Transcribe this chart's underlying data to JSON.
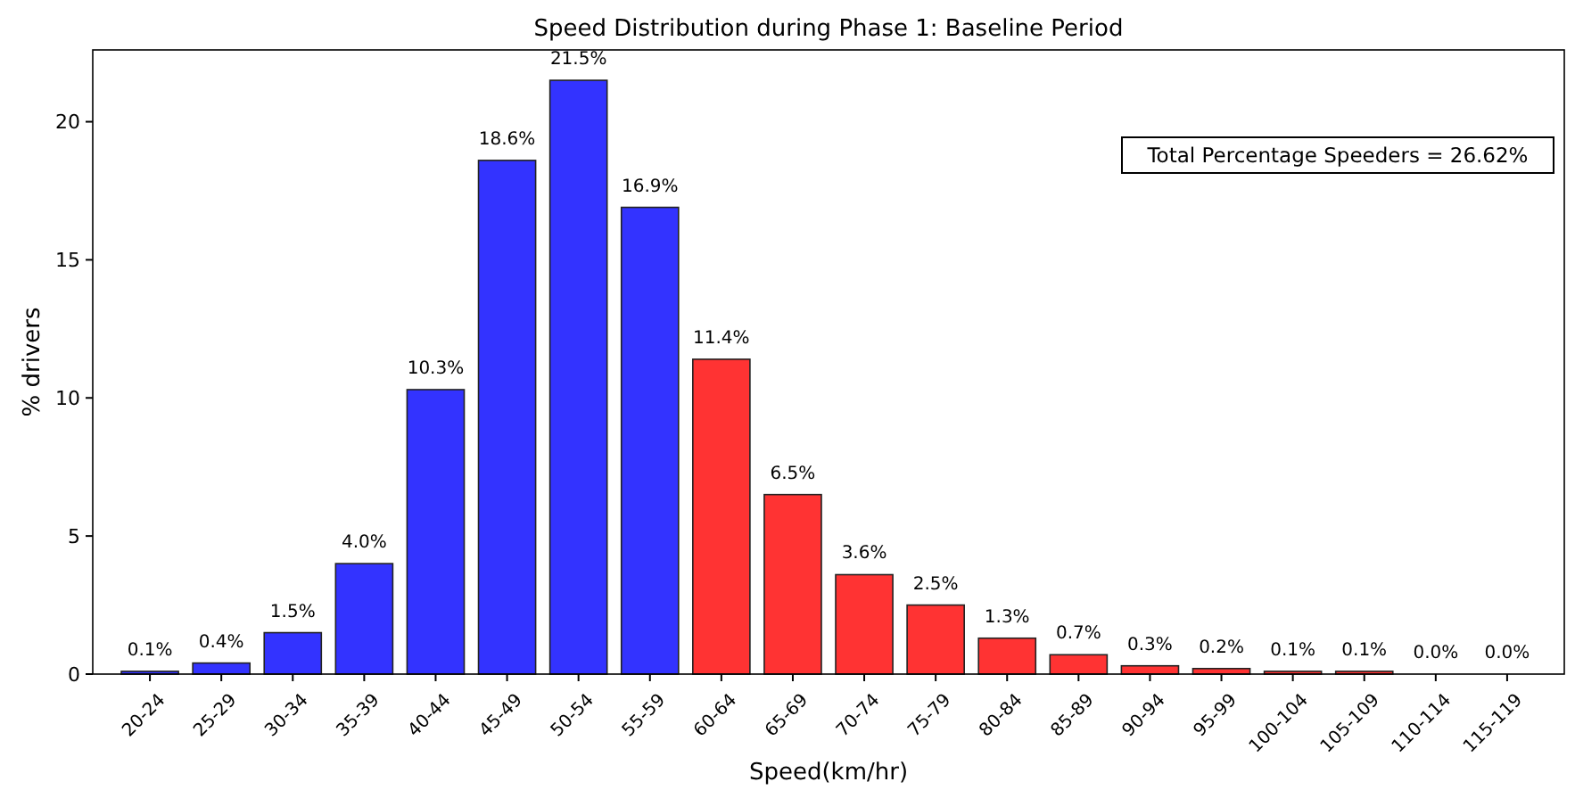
{
  "chart_data": {
    "type": "bar",
    "title": "Speed Distribution during Phase 1: Baseline Period",
    "xlabel": "Speed(km/hr)",
    "ylabel": "% drivers",
    "categories": [
      "20-24",
      "25-29",
      "30-34",
      "35-39",
      "40-44",
      "45-49",
      "50-54",
      "55-59",
      "60-64",
      "65-69",
      "70-74",
      "75-79",
      "80-84",
      "85-89",
      "90-94",
      "95-99",
      "100-104",
      "105-109",
      "110-114",
      "115-119"
    ],
    "values": [
      0.1,
      0.4,
      1.5,
      4.0,
      10.3,
      18.6,
      21.5,
      16.9,
      11.4,
      6.5,
      3.6,
      2.5,
      1.3,
      0.7,
      0.3,
      0.2,
      0.1,
      0.1,
      0.0,
      0.0
    ],
    "colors": [
      "#3333ff",
      "#3333ff",
      "#3333ff",
      "#3333ff",
      "#3333ff",
      "#3333ff",
      "#3333ff",
      "#3333ff",
      "#ff3333",
      "#ff3333",
      "#ff3333",
      "#ff3333",
      "#ff3333",
      "#ff3333",
      "#ff3333",
      "#ff3333",
      "#ff3333",
      "#ff3333",
      "#ff3333",
      "#ff3333"
    ],
    "value_labels": [
      "0.1%",
      "0.4%",
      "1.5%",
      "4.0%",
      "10.3%",
      "18.6%",
      "21.5%",
      "16.9%",
      "11.4%",
      "6.5%",
      "3.6%",
      "2.5%",
      "1.3%",
      "0.7%",
      "0.3%",
      "0.2%",
      "0.1%",
      "0.1%",
      "0.0%",
      "0.0%"
    ],
    "ylim": [
      0,
      22.6
    ],
    "yticks": [
      0,
      5,
      10,
      15,
      20
    ],
    "grid": false,
    "annotations": [
      "Total Percentage Speeders = 26.62%"
    ]
  }
}
